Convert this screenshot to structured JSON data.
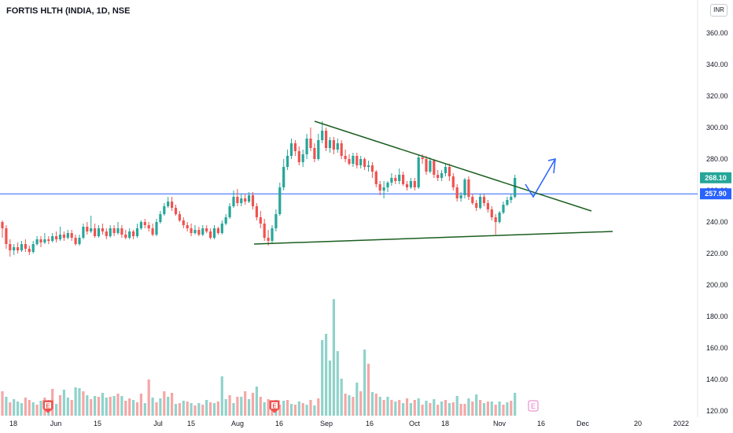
{
  "header": {
    "title": "FORTIS HLTH (INDIA, 1D, NSE",
    "currency": "INR"
  },
  "chart_data": {
    "type": "candlestick",
    "y_axis": {
      "ticks": [
        120,
        140,
        160,
        180,
        200,
        220,
        240,
        260,
        280,
        300,
        320,
        340,
        360
      ],
      "range": [
        115,
        370
      ],
      "tick_labels": [
        "120.00",
        "140.00",
        "160.00",
        "180.00",
        "200.00",
        "220.00",
        "240.00",
        "260.00",
        "280.00",
        "300.00",
        "320.00",
        "340.00",
        "360.00"
      ]
    },
    "x_axis": {
      "labels": [
        "18",
        "Jun",
        "15",
        "Jul",
        "15",
        "Aug",
        "16",
        "Sep",
        "16",
        "Oct",
        "18",
        "Nov",
        "16",
        "Dec",
        "20",
        "2022"
      ]
    },
    "last_price": {
      "value": "268.10",
      "color": "#26a69a"
    },
    "horizontal_line": {
      "value": "257.90",
      "color": "#2962ff"
    },
    "colors": {
      "up": "#26a69a",
      "down": "#ef5350",
      "up_volume": "#8fd3cb",
      "down_volume": "#f4a7a6",
      "trendline": "#1b5e20",
      "arrow": "#2962ff"
    },
    "candles": [
      [
        240,
        236,
        241,
        230
      ],
      [
        236,
        226,
        238,
        223
      ],
      [
        226,
        222,
        229,
        218
      ],
      [
        222,
        224,
        226,
        219
      ],
      [
        224,
        222,
        227,
        220
      ],
      [
        222,
        226,
        228,
        221
      ],
      [
        226,
        223,
        229,
        221
      ],
      [
        223,
        221,
        225,
        219
      ],
      [
        221,
        226,
        228,
        220
      ],
      [
        226,
        229,
        231,
        225
      ],
      [
        229,
        227,
        231,
        224
      ],
      [
        227,
        229,
        233,
        226
      ],
      [
        229,
        228,
        231,
        226
      ],
      [
        228,
        231,
        233,
        227
      ],
      [
        231,
        229,
        234,
        227
      ],
      [
        229,
        232,
        237,
        228
      ],
      [
        232,
        230,
        234,
        228
      ],
      [
        230,
        233,
        235,
        229
      ],
      [
        233,
        230,
        235,
        228
      ],
      [
        230,
        226,
        232,
        225
      ],
      [
        226,
        230,
        232,
        225
      ],
      [
        230,
        237,
        239,
        229
      ],
      [
        237,
        234,
        240,
        232
      ],
      [
        234,
        236,
        244,
        233
      ],
      [
        236,
        231,
        239,
        230
      ],
      [
        231,
        236,
        238,
        230
      ],
      [
        236,
        234,
        239,
        232
      ],
      [
        234,
        231,
        236,
        229
      ],
      [
        231,
        236,
        238,
        230
      ],
      [
        236,
        233,
        238,
        231
      ],
      [
        233,
        236,
        240,
        232
      ],
      [
        236,
        232,
        238,
        230
      ],
      [
        232,
        230,
        235,
        229
      ],
      [
        230,
        234,
        236,
        229
      ],
      [
        234,
        231,
        235,
        229
      ],
      [
        231,
        236,
        239,
        230
      ],
      [
        236,
        240,
        241,
        235
      ],
      [
        240,
        238,
        242,
        236
      ],
      [
        238,
        236,
        240,
        234
      ],
      [
        236,
        232,
        239,
        231
      ],
      [
        232,
        240,
        242,
        231
      ],
      [
        240,
        245,
        247,
        239
      ],
      [
        245,
        250,
        252,
        244
      ],
      [
        250,
        253,
        256,
        249
      ],
      [
        253,
        249,
        256,
        247
      ],
      [
        249,
        245,
        251,
        244
      ],
      [
        245,
        241,
        247,
        240
      ],
      [
        241,
        238,
        243,
        236
      ],
      [
        238,
        236,
        240,
        234
      ],
      [
        236,
        233,
        239,
        231
      ],
      [
        233,
        235,
        238,
        232
      ],
      [
        235,
        232,
        237,
        231
      ],
      [
        232,
        236,
        238,
        231
      ],
      [
        236,
        234,
        238,
        233
      ],
      [
        234,
        230,
        236,
        229
      ],
      [
        230,
        236,
        238,
        229
      ],
      [
        236,
        233,
        237,
        232
      ],
      [
        233,
        239,
        241,
        232
      ],
      [
        239,
        243,
        245,
        238
      ],
      [
        243,
        250,
        252,
        242
      ],
      [
        250,
        256,
        260,
        249
      ],
      [
        256,
        252,
        261,
        250
      ],
      [
        252,
        255,
        258,
        250
      ],
      [
        255,
        253,
        258,
        251
      ],
      [
        253,
        257,
        259,
        252
      ],
      [
        257,
        250,
        259,
        248
      ],
      [
        250,
        243,
        252,
        241
      ],
      [
        243,
        239,
        247,
        236
      ],
      [
        239,
        230,
        242,
        228
      ],
      [
        230,
        228,
        235,
        225
      ],
      [
        228,
        236,
        238,
        226
      ],
      [
        236,
        245,
        248,
        234
      ],
      [
        245,
        262,
        265,
        244
      ],
      [
        262,
        275,
        280,
        260
      ],
      [
        275,
        282,
        286,
        273
      ],
      [
        282,
        290,
        293,
        280
      ],
      [
        290,
        285,
        292,
        282
      ],
      [
        285,
        278,
        288,
        276
      ],
      [
        278,
        283,
        286,
        275
      ],
      [
        283,
        293,
        296,
        280
      ],
      [
        293,
        287,
        300,
        285
      ],
      [
        287,
        280,
        290,
        278
      ],
      [
        280,
        292,
        296,
        279
      ],
      [
        292,
        298,
        304,
        290
      ],
      [
        298,
        287,
        300,
        285
      ],
      [
        287,
        292,
        294,
        284
      ],
      [
        292,
        286,
        294,
        283
      ],
      [
        286,
        290,
        293,
        284
      ],
      [
        290,
        282,
        292,
        280
      ],
      [
        282,
        280,
        286,
        278
      ],
      [
        280,
        277,
        283,
        276
      ],
      [
        277,
        282,
        284,
        275
      ],
      [
        282,
        276,
        284,
        274
      ],
      [
        276,
        280,
        282,
        274
      ],
      [
        280,
        275,
        281,
        273
      ],
      [
        275,
        276,
        279,
        272
      ],
      [
        276,
        272,
        278,
        268
      ],
      [
        272,
        264,
        273,
        262
      ],
      [
        264,
        260,
        266,
        257
      ],
      [
        260,
        262,
        266,
        255
      ],
      [
        262,
        265,
        266,
        259
      ],
      [
        265,
        268,
        271,
        263
      ],
      [
        268,
        266,
        270,
        264
      ],
      [
        266,
        270,
        274,
        264
      ],
      [
        270,
        264,
        272,
        263
      ],
      [
        264,
        262,
        266,
        260
      ],
      [
        262,
        266,
        268,
        261
      ],
      [
        266,
        262,
        268,
        260
      ],
      [
        262,
        281,
        283,
        261
      ],
      [
        281,
        280,
        283,
        277
      ],
      [
        280,
        272,
        282,
        270
      ],
      [
        272,
        279,
        281,
        271
      ],
      [
        279,
        270,
        280,
        268
      ],
      [
        270,
        268,
        273,
        266
      ],
      [
        268,
        271,
        273,
        266
      ],
      [
        271,
        275,
        277,
        269
      ],
      [
        275,
        269,
        277,
        266
      ],
      [
        269,
        262,
        271,
        260
      ],
      [
        262,
        255,
        264,
        253
      ],
      [
        255,
        257,
        259,
        253
      ],
      [
        257,
        267,
        268,
        255
      ],
      [
        267,
        256,
        269,
        254
      ],
      [
        256,
        252,
        258,
        251
      ],
      [
        252,
        249,
        254,
        247
      ],
      [
        249,
        256,
        258,
        248
      ],
      [
        256,
        252,
        258,
        250
      ],
      [
        252,
        248,
        254,
        246
      ],
      [
        248,
        243,
        250,
        241
      ],
      [
        243,
        240,
        245,
        232
      ],
      [
        240,
        246,
        247,
        239
      ],
      [
        246,
        251,
        253,
        245
      ],
      [
        251,
        254,
        256,
        250
      ],
      [
        254,
        256,
        258,
        252
      ],
      [
        256,
        268,
        270,
        255
      ]
    ],
    "volumes": [
      [
        0,
        31
      ],
      [
        1,
        24
      ],
      [
        0,
        17
      ],
      [
        1,
        21
      ],
      [
        1,
        18
      ],
      [
        1,
        16
      ],
      [
        0,
        23
      ],
      [
        0,
        20
      ],
      [
        1,
        17
      ],
      [
        0,
        14
      ],
      [
        1,
        19
      ],
      [
        0,
        23
      ],
      [
        1,
        20
      ],
      [
        0,
        34
      ],
      [
        1,
        15
      ],
      [
        0,
        26
      ],
      [
        1,
        33
      ],
      [
        1,
        23
      ],
      [
        0,
        20
      ],
      [
        1,
        36
      ],
      [
        1,
        35
      ],
      [
        0,
        31
      ],
      [
        1,
        26
      ],
      [
        0,
        21
      ],
      [
        1,
        25
      ],
      [
        0,
        24
      ],
      [
        1,
        29
      ],
      [
        1,
        23
      ],
      [
        0,
        24
      ],
      [
        1,
        25
      ],
      [
        0,
        28
      ],
      [
        1,
        25
      ],
      [
        0,
        19
      ],
      [
        0,
        22
      ],
      [
        1,
        20
      ],
      [
        0,
        17
      ],
      [
        0,
        28
      ],
      [
        1,
        16
      ],
      [
        0,
        46
      ],
      [
        1,
        23
      ],
      [
        0,
        17
      ],
      [
        1,
        22
      ],
      [
        0,
        31
      ],
      [
        1,
        24
      ],
      [
        0,
        29
      ],
      [
        1,
        15
      ],
      [
        0,
        16
      ],
      [
        1,
        19
      ],
      [
        0,
        18
      ],
      [
        1,
        16
      ],
      [
        0,
        13
      ],
      [
        1,
        16
      ],
      [
        0,
        14
      ],
      [
        1,
        20
      ],
      [
        0,
        17
      ],
      [
        1,
        16
      ],
      [
        0,
        18
      ],
      [
        1,
        50
      ],
      [
        1,
        21
      ],
      [
        0,
        26
      ],
      [
        1,
        16
      ],
      [
        0,
        24
      ],
      [
        1,
        24
      ],
      [
        0,
        31
      ],
      [
        1,
        21
      ],
      [
        0,
        29
      ],
      [
        1,
        37
      ],
      [
        0,
        24
      ],
      [
        1,
        17
      ],
      [
        0,
        21
      ],
      [
        0,
        16
      ],
      [
        1,
        20
      ],
      [
        0,
        14
      ],
      [
        1,
        19
      ],
      [
        0,
        20
      ],
      [
        1,
        15
      ],
      [
        0,
        14
      ],
      [
        1,
        18
      ],
      [
        0,
        16
      ],
      [
        1,
        14
      ],
      [
        0,
        20
      ],
      [
        1,
        13
      ],
      [
        0,
        22
      ],
      [
        1,
        96
      ],
      [
        1,
        104
      ],
      [
        1,
        70
      ],
      [
        1,
        148
      ],
      [
        1,
        82
      ],
      [
        1,
        47
      ],
      [
        0,
        28
      ],
      [
        1,
        26
      ],
      [
        0,
        24
      ],
      [
        1,
        42
      ],
      [
        0,
        31
      ],
      [
        1,
        84
      ],
      [
        0,
        66
      ],
      [
        1,
        30
      ],
      [
        0,
        28
      ],
      [
        1,
        24
      ],
      [
        0,
        20
      ],
      [
        1,
        24
      ],
      [
        0,
        20
      ],
      [
        1,
        18
      ],
      [
        0,
        20
      ],
      [
        1,
        16
      ],
      [
        0,
        22
      ],
      [
        1,
        16
      ],
      [
        0,
        20
      ],
      [
        1,
        22
      ],
      [
        0,
        14
      ],
      [
        1,
        19
      ],
      [
        0,
        16
      ],
      [
        1,
        21
      ],
      [
        0,
        14
      ],
      [
        1,
        18
      ],
      [
        0,
        20
      ],
      [
        1,
        16
      ],
      [
        0,
        17
      ],
      [
        1,
        25
      ],
      [
        0,
        15
      ],
      [
        0,
        15
      ],
      [
        1,
        22
      ],
      [
        0,
        18
      ],
      [
        1,
        27
      ],
      [
        0,
        20
      ],
      [
        1,
        16
      ],
      [
        0,
        18
      ],
      [
        1,
        18
      ],
      [
        0,
        14
      ],
      [
        1,
        18
      ],
      [
        0,
        14
      ],
      [
        1,
        17
      ],
      [
        0,
        19
      ],
      [
        1,
        29
      ]
    ],
    "markers": [
      "E",
      "E",
      "E"
    ]
  }
}
